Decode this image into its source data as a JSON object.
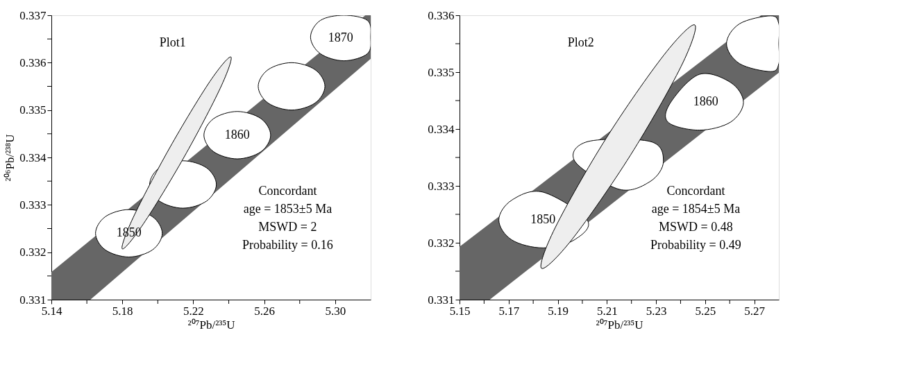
{
  "chart_data": [
    {
      "type": "area",
      "xlabel": "²⁰⁷Pb/²³⁵U",
      "ylabel": "²⁰⁶Pb/²³⁸U",
      "xlim": [
        5.14,
        5.32
      ],
      "ylim": [
        0.331,
        0.337
      ],
      "xticks": [
        5.14,
        {
          "value": 5.16,
          "label": null
        },
        5.18,
        {
          "value": 5.2,
          "label": null
        },
        5.22,
        {
          "value": 5.24,
          "label": null
        },
        5.26,
        {
          "value": 5.28,
          "label": null
        },
        {
          "value": 5.3,
          "label": "5.30"
        }
      ],
      "yticks": [
        0.331,
        {
          "value": 0.3315,
          "label": null
        },
        0.332,
        {
          "value": 0.3325,
          "label": null
        },
        0.333,
        {
          "value": 0.3335,
          "label": null
        },
        0.334,
        {
          "value": 0.3345,
          "label": null
        },
        0.335,
        {
          "value": 0.3355,
          "label": null
        },
        0.336,
        {
          "value": 0.3365,
          "label": null
        },
        0.337
      ],
      "series": [
        {
          "type": "area",
          "color": "#666666",
          "x": [
            5.14,
            5.14,
            5.317,
            5.32,
            5.32,
            5.162
          ],
          "values": [
            0.331,
            0.33158,
            0.337,
            0.337,
            0.33608,
            0.331
          ]
        },
        {
          "type": "area",
          "color": "#ffffff",
          "x": [
            5.2025,
            5.197,
            5.1837,
            5.1704,
            5.1649,
            5.1704,
            5.1837,
            5.197
          ],
          "values": [
            0.3324,
            0.33275,
            0.3329,
            0.33275,
            0.3324,
            0.33205,
            0.3319,
            0.33205
          ]
        },
        {
          "type": "area",
          "color": "#ffffff",
          "x": [
            5.233,
            5.2275,
            5.2142,
            5.2009,
            5.1954,
            5.2009,
            5.2142,
            5.2275
          ],
          "values": [
            0.33343,
            0.33378,
            0.33393,
            0.33378,
            0.33343,
            0.33308,
            0.33293,
            0.33308
          ]
        },
        {
          "type": "area",
          "color": "#ffffff",
          "x": [
            5.2636,
            5.2581,
            5.2448,
            5.2315,
            5.226,
            5.2315,
            5.2448,
            5.2581
          ],
          "values": [
            0.33447,
            0.33482,
            0.33497,
            0.33482,
            0.33447,
            0.33412,
            0.33397,
            0.33412
          ]
        },
        {
          "type": "area",
          "color": "#ffffff",
          "x": [
            5.2942,
            5.2887,
            5.2754,
            5.2621,
            5.2566,
            5.2621,
            5.2754,
            5.2887
          ],
          "values": [
            0.3355,
            0.33585,
            0.336,
            0.33585,
            0.3355,
            0.33515,
            0.335,
            0.33515
          ]
        },
        {
          "type": "area",
          "color": "#ffffff",
          "x": [
            5.32,
            5.3182,
            5.3049,
            5.2916,
            5.2861,
            5.2916,
            5.3049,
            5.3182
          ],
          "values": [
            0.33654,
            0.33689,
            0.337,
            0.33689,
            0.33654,
            0.33619,
            0.33604,
            0.33619
          ]
        },
        {
          "type": "area",
          "color": "#eeeeee",
          "x": [
            5.2412,
            5.2352,
            5.2147,
            5.1919,
            5.18,
            5.1861,
            5.2065,
            5.2293
          ],
          "values": [
            0.33612,
            0.33546,
            0.334,
            0.3326,
            0.33207,
            0.33273,
            0.33419,
            0.3356
          ]
        }
      ],
      "annotations": [
        "Plot1",
        "Concordant",
        "age = 1853±5 Ma",
        "MSWD = 2",
        "Probability = 0.16",
        "1850",
        "1860",
        "1870"
      ]
    },
    {
      "type": "area",
      "xlabel": "²⁰⁷Pb/²³⁵U",
      "xlim": [
        5.15,
        5.28
      ],
      "ylim": [
        0.331,
        0.336
      ],
      "xticks": [
        5.15,
        {
          "value": 5.16,
          "label": null
        },
        5.17,
        {
          "value": 5.18,
          "label": null
        },
        5.19,
        {
          "value": 5.2,
          "label": null
        },
        5.21,
        {
          "value": 5.22,
          "label": null
        },
        5.23,
        {
          "value": 5.24,
          "label": null
        },
        5.25,
        {
          "value": 5.26,
          "label": null
        },
        5.27
      ],
      "yticks": [
        0.331,
        {
          "value": 0.3315,
          "label": null
        },
        0.332,
        {
          "value": 0.3325,
          "label": null
        },
        0.333,
        {
          "value": 0.3335,
          "label": null
        },
        0.334,
        {
          "value": 0.3345,
          "label": null
        },
        0.335,
        {
          "value": 0.3355,
          "label": null
        },
        0.336
      ],
      "series": [
        {
          "type": "area",
          "color": "#666666",
          "x": [
            5.15,
            5.15,
            5.2728,
            5.28,
            5.28,
            5.1623
          ],
          "values": [
            0.331,
            0.33193,
            0.336,
            0.336,
            0.33499,
            0.331
          ]
        },
        {
          "type": "area",
          "color": "#ffffff",
          "x": [
            5.202,
            null,
            5.184,
            5.1713,
            5.166,
            5.1713,
            5.184,
            5.1967
          ],
          "values": [
            0.3324,
            null,
            0.33289,
            0.33275,
            0.3324,
            0.33205,
            0.33191,
            0.33205
          ]
        },
        {
          "type": "area",
          "color": "#ffffff",
          "x": [
            5.233,
            5.2277,
            null,
            5.2023,
            5.197,
            null,
            5.215,
            5.2277
          ],
          "values": [
            0.33343,
            0.33378,
            null,
            0.33378,
            0.33343,
            null,
            0.33294,
            0.33308
          ]
        },
        {
          "type": "area",
          "color": "#ffffff",
          "x": [
            5.2656,
            5.2603,
            5.2476,
            null,
            5.236,
            5.2349,
            5.2476,
            5.2603
          ],
          "values": [
            0.33447,
            0.33482,
            0.33496,
            null,
            0.33447,
            0.33412,
            0.33398,
            0.33412
          ]
        },
        {
          "type": "area",
          "color": "#ffffff",
          "x": [
            5.28,
            5.28,
            5.2767,
            5.264,
            5.2587,
            5.264,
            5.2767,
            5.28
          ],
          "values": [
            0.3355,
            0.33585,
            0.33599,
            0.33585,
            0.3355,
            0.33515,
            0.33501,
            0.33515
          ]
        },
        {
          "type": "area",
          "color": "#eeeeee",
          "x": [
            5.2458,
            5.2402,
            5.2196,
            5.196,
            5.1834,
            5.189,
            5.2096,
            5.2332
          ],
          "values": [
            0.33583,
            0.3351,
            0.33354,
            0.33207,
            0.33155,
            0.33227,
            0.33383,
            0.3353
          ]
        }
      ],
      "annotations": [
        "Plot2",
        "Concordant",
        "age = 1854±5 Ma",
        "MSWD = 0.48",
        "Probability = 0.49",
        "1850",
        "1860"
      ]
    }
  ]
}
